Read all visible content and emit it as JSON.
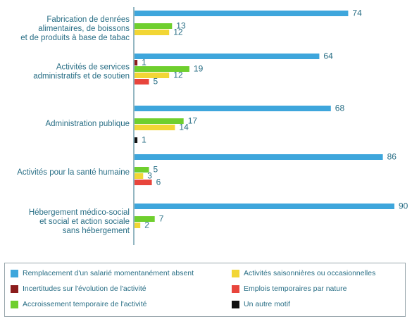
{
  "chart_data": {
    "type": "bar",
    "orientation": "horizontal",
    "title": "",
    "xlabel": "",
    "ylabel": "",
    "xlim": [
      0,
      90
    ],
    "grid": false,
    "legend_position": "bottom",
    "categories": [
      [
        "Fabrication de denrées",
        "alimentaires, de boissons",
        "et de produits à base de tabac"
      ],
      [
        "Activités de services",
        "administratifs et de soutien"
      ],
      [
        "Administration publique"
      ],
      [
        "Activités pour la santé humaine"
      ],
      [
        "Hébergement médico-social",
        "et social et action sociale",
        "sans hébergement"
      ]
    ],
    "series": [
      {
        "name": "Remplacement d'un salarié momentanément absent",
        "color": "#3ea6dc",
        "values": [
          74,
          64,
          68,
          86,
          90
        ]
      },
      {
        "name": "Incertitudes sur l'évolution de l'activité",
        "color": "#8b1c1c",
        "values": [
          null,
          1,
          null,
          null,
          null
        ]
      },
      {
        "name": "Accroissement temporaire de l'activité",
        "color": "#6fcf2e",
        "values": [
          13,
          19,
          17,
          5,
          7
        ]
      },
      {
        "name": "Activités saisonnières ou occasionnelles",
        "color": "#f2d635",
        "values": [
          12,
          12,
          14,
          3,
          2
        ]
      },
      {
        "name": "Emplois temporaires par nature",
        "color": "#e8453c",
        "values": [
          null,
          5,
          null,
          6,
          null
        ]
      },
      {
        "name": "Un autre motif",
        "color": "#111111",
        "values": [
          null,
          null,
          1,
          null,
          null
        ]
      }
    ]
  }
}
